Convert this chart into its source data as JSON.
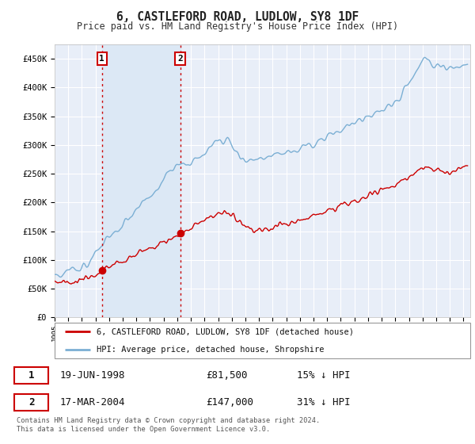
{
  "title": "6, CASTLEFORD ROAD, LUDLOW, SY8 1DF",
  "subtitle": "Price paid vs. HM Land Registry's House Price Index (HPI)",
  "ylabel_ticks": [
    "£0",
    "£50K",
    "£100K",
    "£150K",
    "£200K",
    "£250K",
    "£300K",
    "£350K",
    "£400K",
    "£450K"
  ],
  "ytick_values": [
    0,
    50000,
    100000,
    150000,
    200000,
    250000,
    300000,
    350000,
    400000,
    450000
  ],
  "ylim": [
    0,
    475000
  ],
  "xlim_start": 1995.0,
  "xlim_end": 2025.5,
  "background_color": "#ffffff",
  "plot_bg_color": "#e8eef8",
  "grid_color": "#ffffff",
  "hpi_line_color": "#7bafd4",
  "price_line_color": "#cc0000",
  "vline_color": "#cc0000",
  "shade_color": "#dce8f5",
  "purchase1_date": 1998.47,
  "purchase1_price": 81500,
  "purchase1_label": "1",
  "purchase2_date": 2004.21,
  "purchase2_price": 147000,
  "purchase2_label": "2",
  "legend_line1": "6, CASTLEFORD ROAD, LUDLOW, SY8 1DF (detached house)",
  "legend_line2": "HPI: Average price, detached house, Shropshire",
  "table_row1_num": "1",
  "table_row1_date": "19-JUN-1998",
  "table_row1_price": "£81,500",
  "table_row1_hpi": "15% ↓ HPI",
  "table_row2_num": "2",
  "table_row2_date": "17-MAR-2004",
  "table_row2_price": "£147,000",
  "table_row2_hpi": "31% ↓ HPI",
  "footnote": "Contains HM Land Registry data © Crown copyright and database right 2024.\nThis data is licensed under the Open Government Licence v3.0.",
  "xtick_years": [
    1995,
    1996,
    1997,
    1998,
    1999,
    2000,
    2001,
    2002,
    2003,
    2004,
    2005,
    2006,
    2007,
    2008,
    2009,
    2010,
    2011,
    2012,
    2013,
    2014,
    2015,
    2016,
    2017,
    2018,
    2019,
    2020,
    2021,
    2022,
    2023,
    2024,
    2025
  ]
}
